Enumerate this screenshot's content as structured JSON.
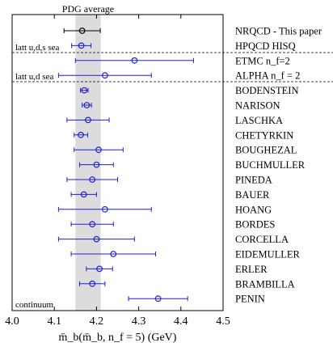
{
  "chart_data": {
    "type": "scatter",
    "title": "",
    "xlabel": "m̄_b(m̄_b, n_f = 5) (GeV)",
    "xlim": [
      4.0,
      4.5
    ],
    "xticks": [
      "4.0",
      "4.1",
      "4.2",
      "4.3",
      "4.4",
      "4.5"
    ],
    "pdg_band": {
      "label": "PDG average",
      "low": 4.15,
      "high": 4.21
    },
    "regions": [
      "latt u,d,s sea",
      "latt u,d sea",
      "continuum"
    ],
    "series": [
      {
        "name": "",
        "points": [
          {
            "label": "NRQCD - This paper",
            "value": 4.166,
            "err_low": 0.043,
            "err_high": 0.043,
            "color": "#000000"
          },
          {
            "label": "HPQCD HISQ",
            "value": 4.164,
            "err_low": 0.023,
            "err_high": 0.023,
            "color": "#1f1fd6"
          },
          {
            "label": "ETMC n_f=2",
            "value": 4.29,
            "err_low": 0.14,
            "err_high": 0.14,
            "color": "#1f1fd6"
          },
          {
            "label": "ALPHA n_f = 2",
            "value": 4.22,
            "err_low": 0.11,
            "err_high": 0.11,
            "color": "#1f1fd6"
          },
          {
            "label": "BODENSTEIN",
            "value": 4.171,
            "err_low": 0.009,
            "err_high": 0.009,
            "color": "#1f1fd6"
          },
          {
            "label": "NARISON",
            "value": 4.177,
            "err_low": 0.011,
            "err_high": 0.011,
            "color": "#1f1fd6"
          },
          {
            "label": "LASCHKA",
            "value": 4.18,
            "err_low": 0.05,
            "err_high": 0.05,
            "color": "#1f1fd6"
          },
          {
            "label": "CHETYRKIN",
            "value": 4.163,
            "err_low": 0.016,
            "err_high": 0.016,
            "color": "#1f1fd6"
          },
          {
            "label": "BOUGHEZAL",
            "value": 4.205,
            "err_low": 0.058,
            "err_high": 0.058,
            "color": "#1f1fd6"
          },
          {
            "label": "BUCHMULLER",
            "value": 4.2,
            "err_low": 0.04,
            "err_high": 0.04,
            "color": "#1f1fd6"
          },
          {
            "label": "PINEDA",
            "value": 4.19,
            "err_low": 0.06,
            "err_high": 0.06,
            "color": "#1f1fd6"
          },
          {
            "label": "BAUER",
            "value": 4.17,
            "err_low": 0.03,
            "err_high": 0.03,
            "color": "#1f1fd6"
          },
          {
            "label": "HOANG",
            "value": 4.22,
            "err_low": 0.11,
            "err_high": 0.11,
            "color": "#1f1fd6"
          },
          {
            "label": "BORDES",
            "value": 4.19,
            "err_low": 0.05,
            "err_high": 0.05,
            "color": "#1f1fd6"
          },
          {
            "label": "CORCELLA",
            "value": 4.2,
            "err_low": 0.09,
            "err_high": 0.09,
            "color": "#1f1fd6"
          },
          {
            "label": "EIDEMULLER",
            "value": 4.24,
            "err_low": 0.1,
            "err_high": 0.1,
            "color": "#1f1fd6"
          },
          {
            "label": "ERLER",
            "value": 4.207,
            "err_low": 0.031,
            "err_high": 0.031,
            "color": "#1f1fd6"
          },
          {
            "label": "BRAMBILLA",
            "value": 4.19,
            "err_low": 0.03,
            "err_high": 0.03,
            "color": "#1f1fd6"
          },
          {
            "label": "PENIN",
            "value": 4.346,
            "err_low": 0.07,
            "err_high": 0.07,
            "color": "#1f1fd6"
          }
        ]
      }
    ],
    "grid": false,
    "legend": "none"
  }
}
